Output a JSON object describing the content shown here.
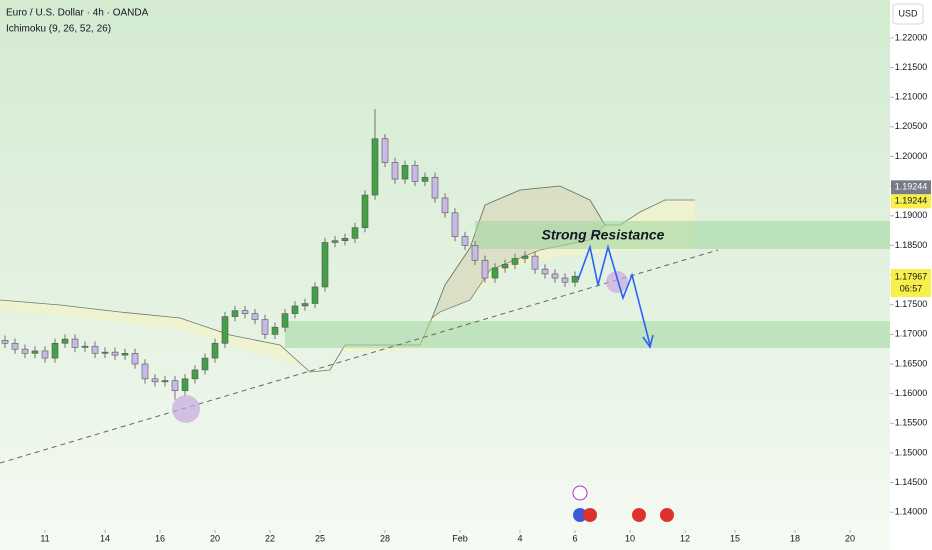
{
  "chart_data": {
    "type": "candlestick",
    "title": "Euro / U.S. Dollar · 4h · OANDA",
    "indicator": "Ichimoku (9, 26, 52, 26)",
    "currency": "USD",
    "annotation": "Strong Resistance",
    "up_color": "#43a047",
    "down_color": "#c9b9e8",
    "xlim": [
      0,
      178
    ],
    "ylim": [
      1.137,
      1.2264
    ],
    "xticks": [
      {
        "value": 9,
        "label": "11"
      },
      {
        "value": 21,
        "label": "14"
      },
      {
        "value": 32,
        "label": "16"
      },
      {
        "value": 43,
        "label": "20"
      },
      {
        "value": 54,
        "label": "22"
      },
      {
        "value": 64,
        "label": "25"
      },
      {
        "value": 77,
        "label": "28"
      },
      {
        "value": 92,
        "label": "Feb"
      },
      {
        "value": 104,
        "label": "4"
      },
      {
        "value": 115,
        "label": "6"
      },
      {
        "value": 126,
        "label": "10"
      },
      {
        "value": 137,
        "label": "12"
      },
      {
        "value": 147,
        "label": "15"
      },
      {
        "value": 159,
        "label": "18"
      },
      {
        "value": 170,
        "label": "20"
      }
    ],
    "yticks": [
      {
        "value": 1.14,
        "label": "1.14000"
      },
      {
        "value": 1.145,
        "label": "1.14500"
      },
      {
        "value": 1.15,
        "label": "1.15000"
      },
      {
        "value": 1.155,
        "label": "1.15500"
      },
      {
        "value": 1.16,
        "label": "1.16000"
      },
      {
        "value": 1.165,
        "label": "1.16500"
      },
      {
        "value": 1.17,
        "label": "1.17000"
      },
      {
        "value": 1.175,
        "label": "1.17500"
      },
      {
        "value": 1.18,
        "label": "1.18000"
      },
      {
        "value": 1.185,
        "label": "1.18500"
      },
      {
        "value": 1.19,
        "label": "1.19000"
      },
      {
        "value": 1.195,
        "label": "1.19500"
      },
      {
        "value": 1.2,
        "label": "1.20000"
      },
      {
        "value": 1.205,
        "label": "1.20500"
      },
      {
        "value": 1.21,
        "label": "1.21000"
      },
      {
        "value": 1.215,
        "label": "1.21500"
      },
      {
        "value": 1.22,
        "label": "1.22000"
      }
    ],
    "cloud_tags": [
      1.19244,
      1.19244
    ],
    "last_price": 1.17967,
    "countdown": "06:57",
    "x": [
      1,
      3,
      5,
      7,
      9,
      11,
      13,
      15,
      17,
      19,
      21,
      23,
      25,
      27,
      29,
      31,
      33,
      35,
      37,
      39,
      41,
      43,
      45,
      47,
      49,
      51,
      53,
      55,
      57,
      59,
      61,
      63,
      65,
      67,
      69,
      71,
      73,
      75,
      77,
      79,
      81,
      83,
      85,
      87,
      89,
      91,
      93,
      95,
      97,
      99,
      101,
      103,
      105,
      107,
      109,
      111,
      113,
      115
    ],
    "open": [
      1.169,
      1.1685,
      1.1675,
      1.1668,
      1.1672,
      1.166,
      1.1685,
      1.1692,
      1.1678,
      1.168,
      1.1668,
      1.167,
      1.1665,
      1.1668,
      1.165,
      1.1625,
      1.162,
      1.1622,
      1.1605,
      1.1625,
      1.164,
      1.166,
      1.1685,
      1.173,
      1.174,
      1.1735,
      1.1725,
      1.17,
      1.1712,
      1.1735,
      1.1748,
      1.1752,
      1.178,
      1.1855,
      1.1858,
      1.1862,
      1.188,
      1.1935,
      1.203,
      1.199,
      1.1962,
      1.1985,
      1.1958,
      1.1965,
      1.193,
      1.1905,
      1.1865,
      1.185,
      1.1825,
      1.1795,
      1.1812,
      1.1818,
      1.1828,
      1.1832,
      1.181,
      1.1802,
      1.1795,
      1.1788
    ],
    "high": [
      1.1698,
      1.1693,
      1.1683,
      1.168,
      1.168,
      1.1693,
      1.17,
      1.17,
      1.1688,
      1.1688,
      1.1678,
      1.1678,
      1.1676,
      1.1676,
      1.1658,
      1.1633,
      1.163,
      1.163,
      1.1633,
      1.1648,
      1.1668,
      1.1693,
      1.1738,
      1.1748,
      1.1748,
      1.1743,
      1.1733,
      1.172,
      1.1743,
      1.1756,
      1.176,
      1.1788,
      1.1863,
      1.1866,
      1.187,
      1.1888,
      1.1943,
      1.208,
      1.2038,
      1.1998,
      1.1993,
      1.1993,
      1.1973,
      1.1973,
      1.1938,
      1.1913,
      1.1873,
      1.1858,
      1.1833,
      1.182,
      1.1826,
      1.1836,
      1.184,
      1.184,
      1.1818,
      1.181,
      1.1803,
      1.1806
    ],
    "low": [
      1.1677,
      1.1667,
      1.166,
      1.166,
      1.1652,
      1.1652,
      1.1677,
      1.167,
      1.167,
      1.166,
      1.166,
      1.1657,
      1.1657,
      1.1642,
      1.1617,
      1.1612,
      1.1612,
      1.159,
      1.1597,
      1.1617,
      1.1632,
      1.1652,
      1.1677,
      1.1722,
      1.1727,
      1.1717,
      1.1692,
      1.1692,
      1.1704,
      1.1727,
      1.174,
      1.1744,
      1.1772,
      1.1847,
      1.185,
      1.1854,
      1.1872,
      1.1927,
      1.1982,
      1.1954,
      1.1954,
      1.195,
      1.195,
      1.1922,
      1.1897,
      1.1857,
      1.1842,
      1.1817,
      1.1787,
      1.1787,
      1.1804,
      1.181,
      1.182,
      1.1802,
      1.1794,
      1.1787,
      1.178,
      1.178
    ],
    "close": [
      1.1685,
      1.1675,
      1.1668,
      1.1672,
      1.166,
      1.1685,
      1.1692,
      1.1678,
      1.168,
      1.1668,
      1.167,
      1.1665,
      1.1668,
      1.165,
      1.1625,
      1.162,
      1.1622,
      1.1605,
      1.1625,
      1.164,
      1.166,
      1.1685,
      1.173,
      1.174,
      1.1735,
      1.1725,
      1.17,
      1.1712,
      1.1735,
      1.1748,
      1.1752,
      1.178,
      1.1855,
      1.1858,
      1.1862,
      1.188,
      1.1935,
      1.203,
      1.199,
      1.1962,
      1.1985,
      1.1958,
      1.1965,
      1.193,
      1.1905,
      1.1865,
      1.185,
      1.1825,
      1.1795,
      1.1812,
      1.1818,
      1.1828,
      1.1832,
      1.181,
      1.1802,
      1.1795,
      1.1788,
      1.1798
    ]
  }
}
